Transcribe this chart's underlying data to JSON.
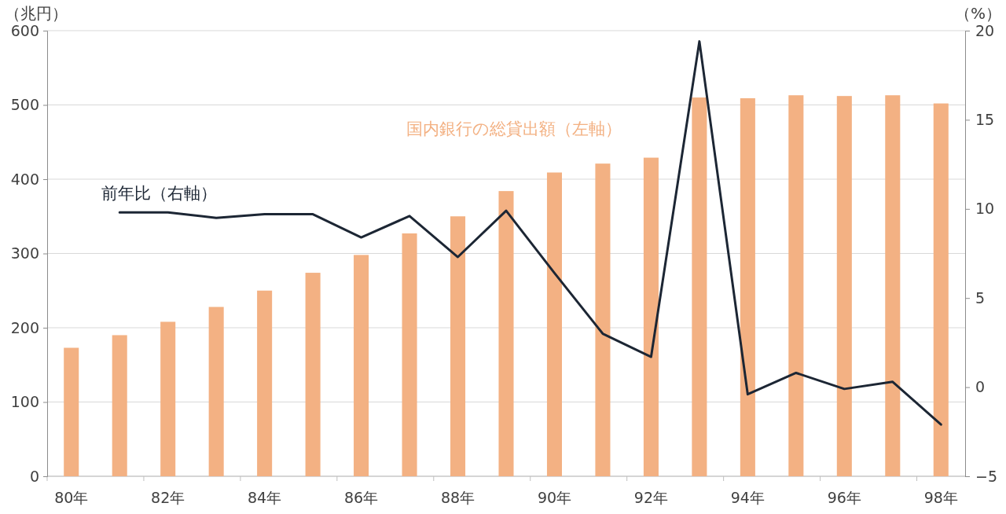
{
  "chart_data": {
    "type": "bar",
    "ylabel": "（兆円）",
    "y2label": "（%）",
    "categories": [
      "80年",
      null,
      "82年",
      null,
      "84年",
      null,
      "86年",
      null,
      "88年",
      null,
      "90年",
      null,
      "92年",
      null,
      "94年",
      null,
      "96年",
      null,
      "98年"
    ],
    "series": [
      {
        "name": "国内銀行の総貸出額（左軸）",
        "color": "#f3b183",
        "values": [
          173,
          190,
          208,
          228,
          250,
          274,
          298,
          327,
          350,
          384,
          409,
          421,
          429,
          510,
          509,
          513,
          512,
          513,
          502
        ]
      },
      {
        "name": "前年比（右軸）",
        "type": "line",
        "axis": "y2",
        "color": "#1c2634",
        "values": [
          null,
          9.8,
          9.8,
          9.5,
          9.7,
          9.7,
          8.4,
          9.6,
          7.3,
          9.9,
          6.4,
          3.0,
          1.7,
          19.4,
          -0.4,
          0.8,
          -0.1,
          0.3,
          -2.1
        ]
      }
    ],
    "ylim": [
      0,
      600
    ],
    "yticks": [
      0,
      100,
      200,
      300,
      400,
      500,
      600
    ],
    "y2lim": [
      -5,
      20
    ],
    "y2ticks": [
      -5,
      0,
      5,
      10,
      15,
      20
    ],
    "grid": "y"
  }
}
